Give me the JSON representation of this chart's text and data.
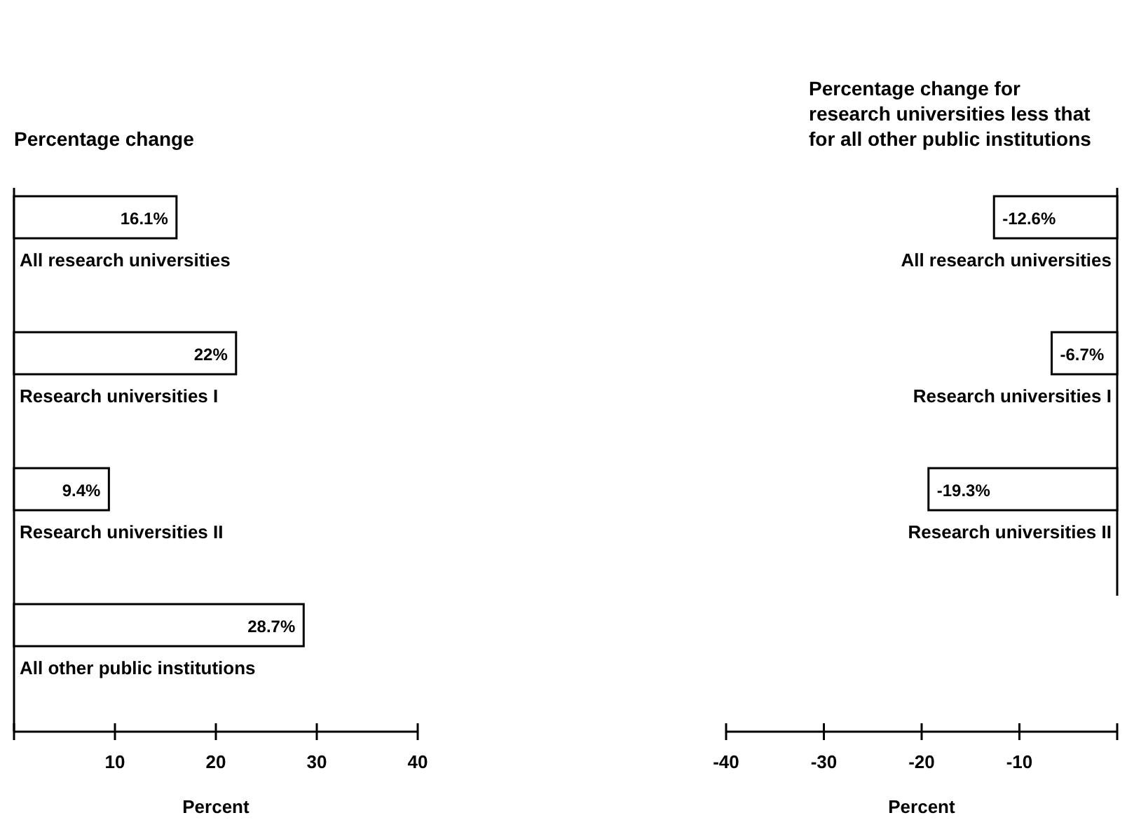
{
  "chart_data": [
    {
      "type": "bar",
      "orientation": "horizontal",
      "title": "Percentage change",
      "xlabel": "Percent",
      "categories": [
        "All research universities",
        "Research universities I",
        "Research universities II",
        "All other public institutions"
      ],
      "values": [
        16.1,
        22,
        9.4,
        28.7
      ],
      "value_labels": [
        "16.1%",
        "22%",
        "9.4%",
        "28.7%"
      ],
      "color": "#ffffff",
      "xlim": [
        0,
        40
      ],
      "xticks": [
        {
          "value": 0,
          "label": null
        },
        10,
        20,
        30,
        40
      ]
    },
    {
      "type": "bar",
      "orientation": "horizontal",
      "title": "Percentage change for research universities less that for all other public institutions",
      "xlabel": "Percent",
      "categories": [
        "All research universities",
        "Research universities I",
        "Research universities II"
      ],
      "values": [
        -12.6,
        -6.7,
        -19.3
      ],
      "value_labels": [
        "-12.6%",
        "-6.7%",
        "-19.3%"
      ],
      "color": "#ffffff",
      "xlim": [
        -40,
        0
      ],
      "xticks": [
        -40,
        -30,
        -20,
        -10,
        {
          "value": 0,
          "label": null
        }
      ]
    }
  ]
}
